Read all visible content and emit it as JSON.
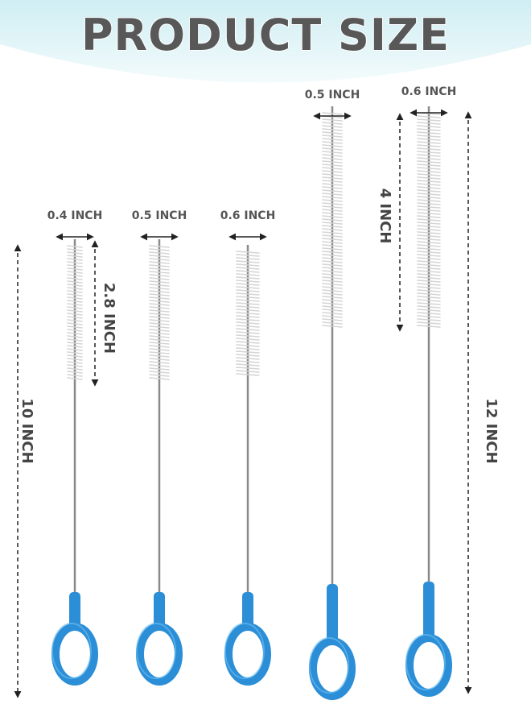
{
  "header": {
    "title": "PRODUCT SIZE"
  },
  "brushes": [
    {
      "width_label": "0.4 INCH"
    },
    {
      "width_label": "0.5 INCH"
    },
    {
      "width_label": "0.6 INCH"
    },
    {
      "width_label": "0.5 INCH"
    },
    {
      "width_label": "0.6 INCH"
    }
  ],
  "dimensions": [
    {
      "label": "2.8 INCH"
    },
    {
      "label": "10 INCH"
    },
    {
      "label": "4 INCH"
    },
    {
      "label": "12 INCH"
    }
  ]
}
